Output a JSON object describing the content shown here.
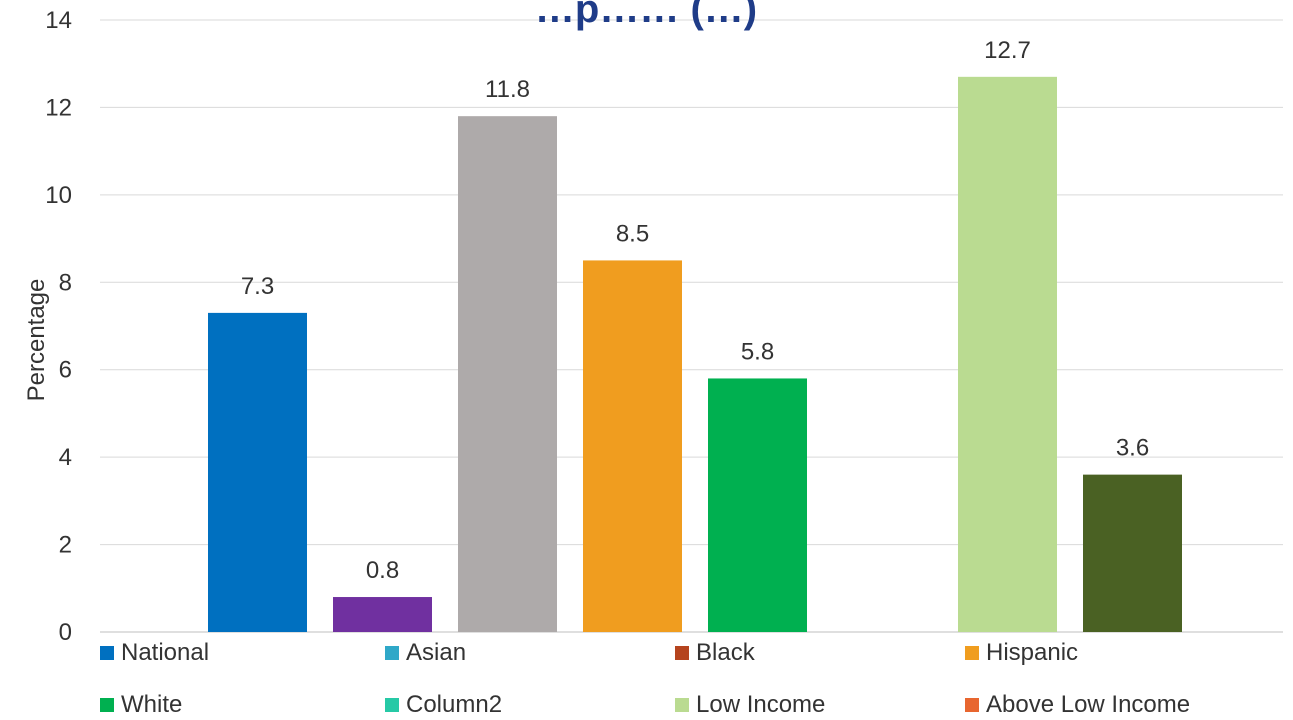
{
  "chart_data": {
    "type": "bar",
    "title": "…p…… (…)",
    "ylabel": "Percentage",
    "ylim": [
      0,
      14
    ],
    "yticks": [
      0,
      2,
      4,
      6,
      8,
      10,
      12,
      14
    ],
    "grid": true,
    "legend_position": "bottom",
    "series": [
      {
        "name": "National",
        "value": 7.3,
        "label": "7.3",
        "color": "#0070C0"
      },
      {
        "name": "Asian",
        "value": 0.8,
        "label": "0.8",
        "color": "#7030A0"
      },
      {
        "name": "Black",
        "value": 11.8,
        "label": "11.8",
        "color": "#AEAAAA"
      },
      {
        "name": "Hispanic",
        "value": 8.5,
        "label": "8.5",
        "color": "#F09D1F"
      },
      {
        "name": "White",
        "value": 5.8,
        "label": "5.8",
        "color": "#00B050"
      },
      {
        "name": "Column2",
        "value": null,
        "label": "",
        "color": "#26C9A6"
      },
      {
        "name": "Low Income",
        "value": 12.7,
        "label": "12.7",
        "color": "#BADB91"
      },
      {
        "name": "Above Low Income",
        "value": 3.6,
        "label": "3.6",
        "color": "#4A6123"
      }
    ]
  },
  "legend": {
    "items": [
      {
        "label": "National",
        "color": "#0070C0"
      },
      {
        "label": "Asian",
        "color": "#2FA8C8"
      },
      {
        "label": "Black",
        "color": "#B5441E"
      },
      {
        "label": "Hispanic",
        "color": "#F09D1F"
      },
      {
        "label": "White",
        "color": "#00B050"
      },
      {
        "label": "Column2",
        "color": "#26C9A6"
      },
      {
        "label": "Low Income",
        "color": "#BADB91"
      },
      {
        "label": "Above Low Income",
        "color": "#E8662F"
      }
    ]
  }
}
